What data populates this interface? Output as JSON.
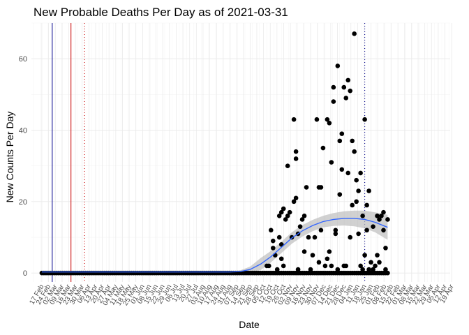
{
  "chart_data": {
    "type": "scatter",
    "title": "New Probable Deaths Per Day as of 2021-03-31",
    "xlabel": "Date",
    "ylabel": "New Counts Per Day",
    "ylim": [
      -2.5,
      70
    ],
    "xlim_days": [
      -5,
      196
    ],
    "yticks": [
      0,
      20,
      40,
      60
    ],
    "grid": true,
    "colors": {
      "points": "#000000",
      "smooth_line": "#3366ff",
      "ribbon": "#bebebe",
      "grid_major": "#ebebeb",
      "grid_minor": "#f4f4f4",
      "vline_blue": "#00008b",
      "vline_red": "#cc0000"
    },
    "xtick_labels": [
      "17 Feb",
      "24 Feb",
      "02 Mar",
      "09 Mar",
      "16 Mar",
      "23 Mar",
      "30 Mar",
      "06 Apr",
      "13 Apr",
      "20 Apr",
      "27 Apr",
      "04 May",
      "11 May",
      "18 May",
      "25 May",
      "01 Jun",
      "08 Jun",
      "15 Jun",
      "22 Jun",
      "29 Jun",
      "06 Jul",
      "13 Jul",
      "20 Jul",
      "27 Jul",
      "03 Aug",
      "10 Aug",
      "17 Aug",
      "24 Aug",
      "31 Aug",
      "07 Sep",
      "14 Sep",
      "21 Sep",
      "28 Sep",
      "05 Oct",
      "12 Oct",
      "19 Oct",
      "26 Oct",
      "02 Nov",
      "09 Nov",
      "16 Nov",
      "23 Nov",
      "30 Nov",
      "07 Dec",
      "14 Dec",
      "21 Dec",
      "28 Dec",
      "04 Jan",
      "11 Jan",
      "18 Jan",
      "25 Jan",
      "01 Feb",
      "08 Feb",
      "15 Feb",
      "22 Feb",
      "01 Mar",
      "08 Mar",
      "15 Mar",
      "22 Mar",
      "29 Mar",
      "05 Apr",
      "12 Apr",
      "19 Apr"
    ],
    "vlines": [
      {
        "label": "first",
        "day": 5,
        "style": "solid",
        "color": "#00008b"
      },
      {
        "label": "second",
        "day": 14,
        "style": "solid",
        "color": "#cc0000"
      },
      {
        "label": "third",
        "day": 20.5,
        "style": "dotted",
        "color": "#cc0000"
      },
      {
        "label": "fourth",
        "day": 155,
        "style": "dotted",
        "color": "#00008b"
      }
    ],
    "nonzero_points": [
      {
        "x": 108,
        "y": 2
      },
      {
        "x": 109,
        "y": 2
      },
      {
        "x": 110,
        "y": 12
      },
      {
        "x": 111,
        "y": 7
      },
      {
        "x": 111,
        "y": 9
      },
      {
        "x": 112,
        "y": 5
      },
      {
        "x": 113,
        "y": 1
      },
      {
        "x": 114,
        "y": 16
      },
      {
        "x": 114,
        "y": 10
      },
      {
        "x": 115,
        "y": 17
      },
      {
        "x": 115,
        "y": 4
      },
      {
        "x": 115,
        "y": 8
      },
      {
        "x": 116,
        "y": 18
      },
      {
        "x": 116,
        "y": 2
      },
      {
        "x": 117,
        "y": 15
      },
      {
        "x": 118,
        "y": 30
      },
      {
        "x": 118,
        "y": 16
      },
      {
        "x": 119,
        "y": 17
      },
      {
        "x": 120,
        "y": 10
      },
      {
        "x": 121,
        "y": 43
      },
      {
        "x": 121,
        "y": 20
      },
      {
        "x": 122,
        "y": 32
      },
      {
        "x": 122,
        "y": 34
      },
      {
        "x": 122,
        "y": 21
      },
      {
        "x": 123,
        "y": 11
      },
      {
        "x": 123,
        "y": 1
      },
      {
        "x": 124,
        "y": 13
      },
      {
        "x": 125,
        "y": 15
      },
      {
        "x": 126,
        "y": 16
      },
      {
        "x": 126,
        "y": 6
      },
      {
        "x": 127,
        "y": 24
      },
      {
        "x": 128,
        "y": 10
      },
      {
        "x": 129,
        "y": 1
      },
      {
        "x": 130,
        "y": 5
      },
      {
        "x": 131,
        "y": 10
      },
      {
        "x": 132,
        "y": 43
      },
      {
        "x": 133,
        "y": 24
      },
      {
        "x": 133,
        "y": 3
      },
      {
        "x": 134,
        "y": 24
      },
      {
        "x": 134,
        "y": 12
      },
      {
        "x": 135,
        "y": 35
      },
      {
        "x": 136,
        "y": 2
      },
      {
        "x": 137,
        "y": 43
      },
      {
        "x": 137,
        "y": 4
      },
      {
        "x": 138,
        "y": 42
      },
      {
        "x": 138,
        "y": 6
      },
      {
        "x": 139,
        "y": 31
      },
      {
        "x": 139,
        "y": 2
      },
      {
        "x": 140,
        "y": 48
      },
      {
        "x": 140,
        "y": 52
      },
      {
        "x": 141,
        "y": 11
      },
      {
        "x": 141,
        "y": 12
      },
      {
        "x": 142,
        "y": 58
      },
      {
        "x": 142,
        "y": 1
      },
      {
        "x": 143,
        "y": 37
      },
      {
        "x": 143,
        "y": 22
      },
      {
        "x": 144,
        "y": 39
      },
      {
        "x": 144,
        "y": 29
      },
      {
        "x": 145,
        "y": 52
      },
      {
        "x": 145,
        "y": 2
      },
      {
        "x": 146,
        "y": 49
      },
      {
        "x": 146,
        "y": 2
      },
      {
        "x": 147,
        "y": 54
      },
      {
        "x": 147,
        "y": 28
      },
      {
        "x": 148,
        "y": 51
      },
      {
        "x": 148,
        "y": 10
      },
      {
        "x": 149,
        "y": 19
      },
      {
        "x": 149,
        "y": 37
      },
      {
        "x": 150,
        "y": 34
      },
      {
        "x": 150,
        "y": 67
      },
      {
        "x": 151,
        "y": 26
      },
      {
        "x": 151,
        "y": 20
      },
      {
        "x": 152,
        "y": 23
      },
      {
        "x": 152,
        "y": 11
      },
      {
        "x": 153,
        "y": 2
      },
      {
        "x": 153,
        "y": 28
      },
      {
        "x": 154,
        "y": 16
      },
      {
        "x": 154,
        "y": 1
      },
      {
        "x": 155,
        "y": 43
      },
      {
        "x": 155,
        "y": 5
      },
      {
        "x": 156,
        "y": 19
      },
      {
        "x": 156,
        "y": 12
      },
      {
        "x": 157,
        "y": 23
      },
      {
        "x": 157,
        "y": 1
      },
      {
        "x": 158,
        "y": 3
      },
      {
        "x": 159,
        "y": 13
      },
      {
        "x": 159,
        "y": 1
      },
      {
        "x": 160,
        "y": 2
      },
      {
        "x": 161,
        "y": 16
      },
      {
        "x": 161,
        "y": 5
      },
      {
        "x": 162,
        "y": 15
      },
      {
        "x": 162,
        "y": 3
      },
      {
        "x": 163,
        "y": 16
      },
      {
        "x": 164,
        "y": 12
      },
      {
        "x": 164,
        "y": 17
      },
      {
        "x": 165,
        "y": 7
      },
      {
        "x": 165,
        "y": 1
      },
      {
        "x": 166,
        "y": 15
      }
    ],
    "zero_points": {
      "from_day": 0,
      "to_day": 166
    },
    "smooth_line": {
      "x": [
        0,
        10,
        20,
        40,
        60,
        80,
        90,
        95,
        100,
        105,
        110,
        115,
        120,
        125,
        130,
        135,
        140,
        145,
        150,
        155,
        160,
        166
      ],
      "y": [
        0.3,
        0.3,
        0.3,
        0.3,
        0.3,
        0.3,
        0.3,
        0.4,
        1.0,
        2.5,
        4.6,
        7.2,
        9.8,
        11.8,
        13.3,
        14.4,
        15.0,
        15.3,
        15.3,
        15.0,
        14.2,
        12.8
      ]
    },
    "ribbon": {
      "x": [
        0,
        10,
        20,
        40,
        60,
        80,
        90,
        95,
        100,
        105,
        110,
        115,
        120,
        125,
        130,
        135,
        140,
        145,
        150,
        155,
        160,
        166
      ],
      "upper": [
        0.6,
        0.5,
        0.5,
        0.5,
        0.5,
        0.5,
        0.5,
        0.7,
        1.8,
        4.2,
        6.2,
        8.8,
        11.4,
        13.4,
        14.9,
        16.0,
        16.8,
        17.3,
        17.5,
        17.5,
        17.0,
        16.3
      ],
      "lower": [
        0.0,
        0.1,
        0.1,
        0.1,
        0.1,
        0.1,
        0.1,
        0.1,
        0.2,
        0.8,
        3.0,
        5.6,
        8.2,
        10.2,
        11.7,
        12.8,
        13.2,
        13.3,
        13.1,
        12.5,
        11.4,
        9.3
      ]
    }
  }
}
